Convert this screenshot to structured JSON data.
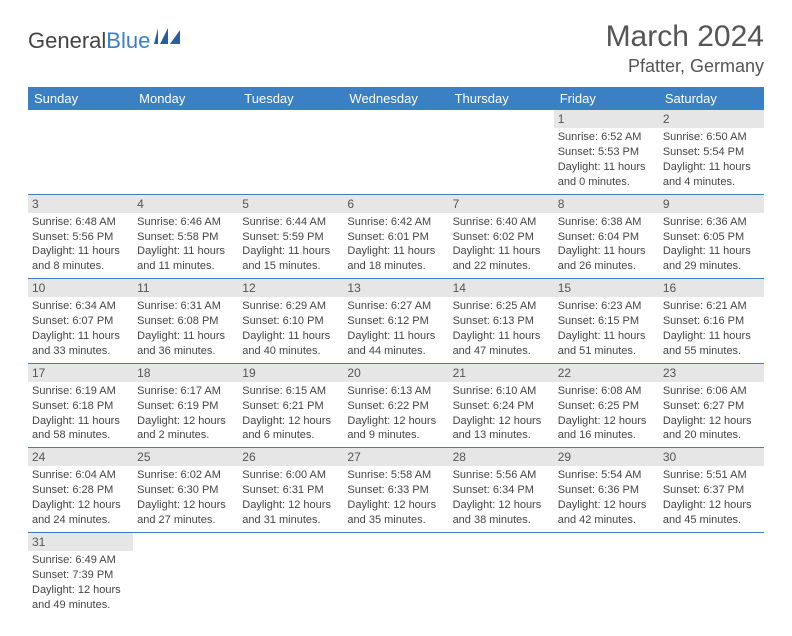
{
  "logo": {
    "text1": "General",
    "text2": "Blue"
  },
  "title": "March 2024",
  "location": "Pfatter, Germany",
  "colors": {
    "header_bg": "#3b7fc4",
    "header_text": "#ffffff",
    "daynum_bg": "#e6e6e6",
    "border": "#3b7fc4",
    "text": "#444444",
    "background": "#ffffff"
  },
  "weekdays": [
    "Sunday",
    "Monday",
    "Tuesday",
    "Wednesday",
    "Thursday",
    "Friday",
    "Saturday"
  ],
  "weeks": [
    [
      null,
      null,
      null,
      null,
      null,
      {
        "n": "1",
        "sr": "Sunrise: 6:52 AM",
        "ss": "Sunset: 5:53 PM",
        "d1": "Daylight: 11 hours",
        "d2": "and 0 minutes."
      },
      {
        "n": "2",
        "sr": "Sunrise: 6:50 AM",
        "ss": "Sunset: 5:54 PM",
        "d1": "Daylight: 11 hours",
        "d2": "and 4 minutes."
      }
    ],
    [
      {
        "n": "3",
        "sr": "Sunrise: 6:48 AM",
        "ss": "Sunset: 5:56 PM",
        "d1": "Daylight: 11 hours",
        "d2": "and 8 minutes."
      },
      {
        "n": "4",
        "sr": "Sunrise: 6:46 AM",
        "ss": "Sunset: 5:58 PM",
        "d1": "Daylight: 11 hours",
        "d2": "and 11 minutes."
      },
      {
        "n": "5",
        "sr": "Sunrise: 6:44 AM",
        "ss": "Sunset: 5:59 PM",
        "d1": "Daylight: 11 hours",
        "d2": "and 15 minutes."
      },
      {
        "n": "6",
        "sr": "Sunrise: 6:42 AM",
        "ss": "Sunset: 6:01 PM",
        "d1": "Daylight: 11 hours",
        "d2": "and 18 minutes."
      },
      {
        "n": "7",
        "sr": "Sunrise: 6:40 AM",
        "ss": "Sunset: 6:02 PM",
        "d1": "Daylight: 11 hours",
        "d2": "and 22 minutes."
      },
      {
        "n": "8",
        "sr": "Sunrise: 6:38 AM",
        "ss": "Sunset: 6:04 PM",
        "d1": "Daylight: 11 hours",
        "d2": "and 26 minutes."
      },
      {
        "n": "9",
        "sr": "Sunrise: 6:36 AM",
        "ss": "Sunset: 6:05 PM",
        "d1": "Daylight: 11 hours",
        "d2": "and 29 minutes."
      }
    ],
    [
      {
        "n": "10",
        "sr": "Sunrise: 6:34 AM",
        "ss": "Sunset: 6:07 PM",
        "d1": "Daylight: 11 hours",
        "d2": "and 33 minutes."
      },
      {
        "n": "11",
        "sr": "Sunrise: 6:31 AM",
        "ss": "Sunset: 6:08 PM",
        "d1": "Daylight: 11 hours",
        "d2": "and 36 minutes."
      },
      {
        "n": "12",
        "sr": "Sunrise: 6:29 AM",
        "ss": "Sunset: 6:10 PM",
        "d1": "Daylight: 11 hours",
        "d2": "and 40 minutes."
      },
      {
        "n": "13",
        "sr": "Sunrise: 6:27 AM",
        "ss": "Sunset: 6:12 PM",
        "d1": "Daylight: 11 hours",
        "d2": "and 44 minutes."
      },
      {
        "n": "14",
        "sr": "Sunrise: 6:25 AM",
        "ss": "Sunset: 6:13 PM",
        "d1": "Daylight: 11 hours",
        "d2": "and 47 minutes."
      },
      {
        "n": "15",
        "sr": "Sunrise: 6:23 AM",
        "ss": "Sunset: 6:15 PM",
        "d1": "Daylight: 11 hours",
        "d2": "and 51 minutes."
      },
      {
        "n": "16",
        "sr": "Sunrise: 6:21 AM",
        "ss": "Sunset: 6:16 PM",
        "d1": "Daylight: 11 hours",
        "d2": "and 55 minutes."
      }
    ],
    [
      {
        "n": "17",
        "sr": "Sunrise: 6:19 AM",
        "ss": "Sunset: 6:18 PM",
        "d1": "Daylight: 11 hours",
        "d2": "and 58 minutes."
      },
      {
        "n": "18",
        "sr": "Sunrise: 6:17 AM",
        "ss": "Sunset: 6:19 PM",
        "d1": "Daylight: 12 hours",
        "d2": "and 2 minutes."
      },
      {
        "n": "19",
        "sr": "Sunrise: 6:15 AM",
        "ss": "Sunset: 6:21 PM",
        "d1": "Daylight: 12 hours",
        "d2": "and 6 minutes."
      },
      {
        "n": "20",
        "sr": "Sunrise: 6:13 AM",
        "ss": "Sunset: 6:22 PM",
        "d1": "Daylight: 12 hours",
        "d2": "and 9 minutes."
      },
      {
        "n": "21",
        "sr": "Sunrise: 6:10 AM",
        "ss": "Sunset: 6:24 PM",
        "d1": "Daylight: 12 hours",
        "d2": "and 13 minutes."
      },
      {
        "n": "22",
        "sr": "Sunrise: 6:08 AM",
        "ss": "Sunset: 6:25 PM",
        "d1": "Daylight: 12 hours",
        "d2": "and 16 minutes."
      },
      {
        "n": "23",
        "sr": "Sunrise: 6:06 AM",
        "ss": "Sunset: 6:27 PM",
        "d1": "Daylight: 12 hours",
        "d2": "and 20 minutes."
      }
    ],
    [
      {
        "n": "24",
        "sr": "Sunrise: 6:04 AM",
        "ss": "Sunset: 6:28 PM",
        "d1": "Daylight: 12 hours",
        "d2": "and 24 minutes."
      },
      {
        "n": "25",
        "sr": "Sunrise: 6:02 AM",
        "ss": "Sunset: 6:30 PM",
        "d1": "Daylight: 12 hours",
        "d2": "and 27 minutes."
      },
      {
        "n": "26",
        "sr": "Sunrise: 6:00 AM",
        "ss": "Sunset: 6:31 PM",
        "d1": "Daylight: 12 hours",
        "d2": "and 31 minutes."
      },
      {
        "n": "27",
        "sr": "Sunrise: 5:58 AM",
        "ss": "Sunset: 6:33 PM",
        "d1": "Daylight: 12 hours",
        "d2": "and 35 minutes."
      },
      {
        "n": "28",
        "sr": "Sunrise: 5:56 AM",
        "ss": "Sunset: 6:34 PM",
        "d1": "Daylight: 12 hours",
        "d2": "and 38 minutes."
      },
      {
        "n": "29",
        "sr": "Sunrise: 5:54 AM",
        "ss": "Sunset: 6:36 PM",
        "d1": "Daylight: 12 hours",
        "d2": "and 42 minutes."
      },
      {
        "n": "30",
        "sr": "Sunrise: 5:51 AM",
        "ss": "Sunset: 6:37 PM",
        "d1": "Daylight: 12 hours",
        "d2": "and 45 minutes."
      }
    ],
    [
      {
        "n": "31",
        "sr": "Sunrise: 6:49 AM",
        "ss": "Sunset: 7:39 PM",
        "d1": "Daylight: 12 hours",
        "d2": "and 49 minutes."
      },
      null,
      null,
      null,
      null,
      null,
      null
    ]
  ]
}
